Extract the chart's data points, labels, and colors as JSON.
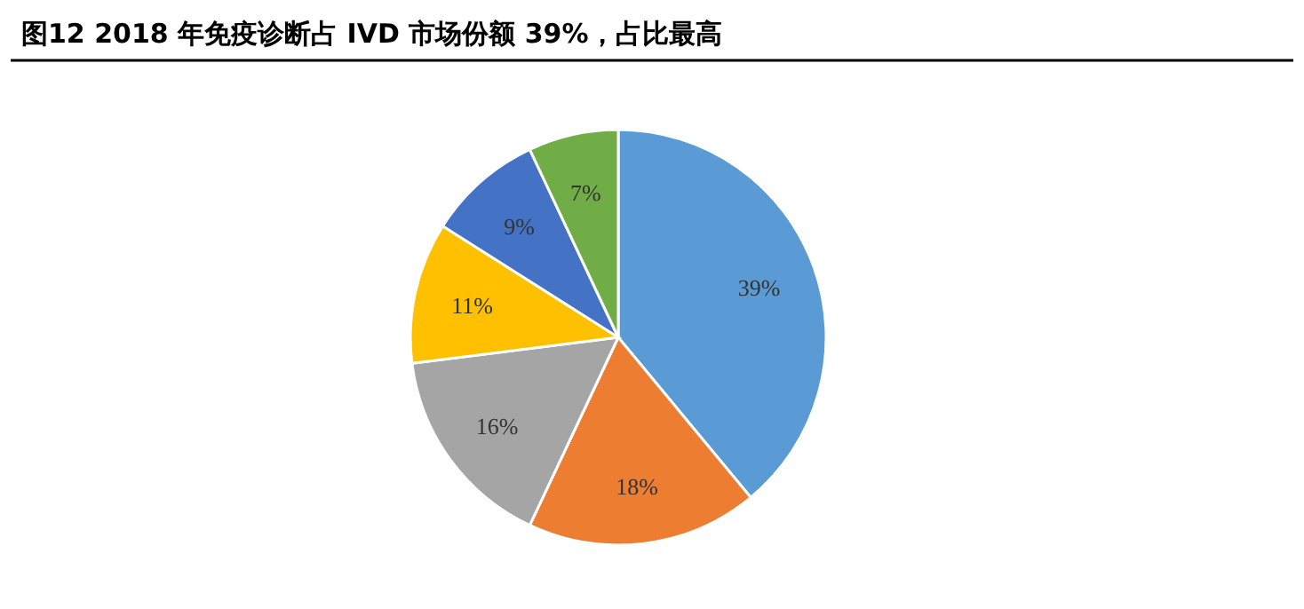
{
  "chart_data": {
    "type": "pie",
    "title": "图12   2018 年免疫诊断占 IVD 市场份额 39%，占比最高",
    "categories": [
      null,
      null,
      null,
      null,
      null,
      null
    ],
    "values": [
      39,
      18,
      16,
      11,
      9,
      7
    ],
    "colors": [
      "#5b9bd5",
      "#ed7d31",
      "#a5a5a5",
      "#ffc000",
      "#4472c4",
      "#70ad47"
    ],
    "value_labels": [
      "39%",
      "18%",
      "16%",
      "11%",
      "9%",
      "7%"
    ]
  }
}
